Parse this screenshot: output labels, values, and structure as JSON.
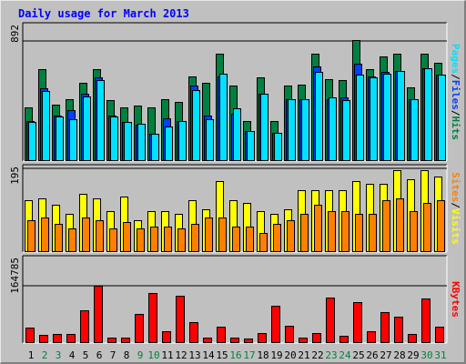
{
  "title": "Daily usage for March 2013",
  "colors": {
    "hits": "#008040",
    "files": "#0040ff",
    "pages": "#00e0ff",
    "visits": "#ffff00",
    "sites": "#ff8000",
    "kbytes": "#ff0000",
    "weekend_label": "#008040",
    "weekday_label": "#000000",
    "slash": "#000000"
  },
  "chart_data": [
    {
      "type": "bar",
      "panel": "hits-files-pages",
      "ylabel_parts": [
        "Pages",
        "Files",
        "Hits"
      ],
      "ylabel_sep": "/",
      "ytick": "892",
      "ylim": [
        0,
        892
      ],
      "categories": [
        "1",
        "2",
        "3",
        "4",
        "5",
        "6",
        "7",
        "8",
        "9",
        "10",
        "11",
        "12",
        "13",
        "14",
        "15",
        "16",
        "17",
        "18",
        "19",
        "20",
        "21",
        "22",
        "23",
        "24",
        "25",
        "26",
        "27",
        "28",
        "29",
        "30",
        "31"
      ],
      "weekend": [
        false,
        true,
        true,
        false,
        false,
        false,
        false,
        false,
        true,
        true,
        false,
        false,
        false,
        false,
        false,
        true,
        true,
        false,
        false,
        false,
        false,
        false,
        true,
        true,
        false,
        false,
        false,
        false,
        false,
        true,
        true
      ],
      "series": [
        {
          "name": "Hits",
          "key": "hits",
          "values": [
            400,
            680,
            420,
            460,
            580,
            680,
            450,
            400,
            410,
            400,
            460,
            440,
            630,
            580,
            800,
            560,
            300,
            620,
            300,
            560,
            570,
            800,
            610,
            600,
            900,
            680,
            780,
            800,
            550,
            800,
            730
          ]
        },
        {
          "name": "Files",
          "key": "files",
          "values": [
            300,
            540,
            340,
            380,
            500,
            620,
            340,
            290,
            270,
            200,
            320,
            300,
            560,
            340,
            630,
            350,
            220,
            500,
            210,
            460,
            460,
            700,
            460,
            470,
            720,
            630,
            660,
            670,
            460,
            690,
            640
          ]
        },
        {
          "name": "Pages",
          "key": "pages",
          "values": [
            290,
            520,
            330,
            310,
            480,
            600,
            330,
            290,
            280,
            200,
            260,
            300,
            530,
            310,
            650,
            390,
            220,
            500,
            210,
            460,
            460,
            660,
            470,
            450,
            640,
            620,
            650,
            670,
            460,
            690,
            640
          ]
        }
      ]
    },
    {
      "type": "bar",
      "panel": "visits-sites",
      "ylabel_parts": [
        "Sites",
        "Visits"
      ],
      "ylabel_sep": "/",
      "ytick": "195",
      "ylim": [
        0,
        195
      ],
      "categories": [
        "1",
        "2",
        "3",
        "4",
        "5",
        "6",
        "7",
        "8",
        "9",
        "10",
        "11",
        "12",
        "13",
        "14",
        "15",
        "16",
        "17",
        "18",
        "19",
        "20",
        "21",
        "22",
        "23",
        "24",
        "25",
        "26",
        "27",
        "28",
        "29",
        "30",
        "31"
      ],
      "series": [
        {
          "name": "Visits",
          "key": "visits",
          "values": [
            120,
            125,
            110,
            90,
            135,
            125,
            95,
            130,
            75,
            95,
            95,
            90,
            120,
            100,
            165,
            120,
            115,
            95,
            90,
            100,
            145,
            145,
            145,
            145,
            165,
            160,
            160,
            190,
            170,
            190,
            175
          ]
        },
        {
          "name": "Sites",
          "key": "sites",
          "values": [
            75,
            80,
            65,
            55,
            80,
            75,
            55,
            70,
            55,
            60,
            60,
            55,
            65,
            80,
            80,
            60,
            60,
            45,
            65,
            75,
            90,
            110,
            95,
            95,
            90,
            90,
            120,
            125,
            95,
            115,
            120
          ]
        }
      ]
    },
    {
      "type": "bar",
      "panel": "kbytes",
      "ylabel_parts": [
        "KBytes"
      ],
      "ylabel_sep": "/",
      "ytick": "164785",
      "ylim": [
        0,
        164785
      ],
      "categories": [
        "1",
        "2",
        "3",
        "4",
        "5",
        "6",
        "7",
        "8",
        "9",
        "10",
        "11",
        "12",
        "13",
        "14",
        "15",
        "16",
        "17",
        "18",
        "19",
        "20",
        "21",
        "22",
        "23",
        "24",
        "25",
        "26",
        "27",
        "28",
        "29",
        "30",
        "31"
      ],
      "series": [
        {
          "name": "KBytes",
          "key": "kbytes",
          "values": [
            45000,
            24000,
            25000,
            27000,
            95000,
            164000,
            17000,
            17000,
            85000,
            145000,
            35000,
            135000,
            60000,
            15000,
            48000,
            17000,
            12000,
            28000,
            108000,
            50000,
            15000,
            28000,
            130000,
            22000,
            118000,
            35000,
            90000,
            75000,
            27000,
            128000,
            48000
          ]
        }
      ]
    }
  ]
}
